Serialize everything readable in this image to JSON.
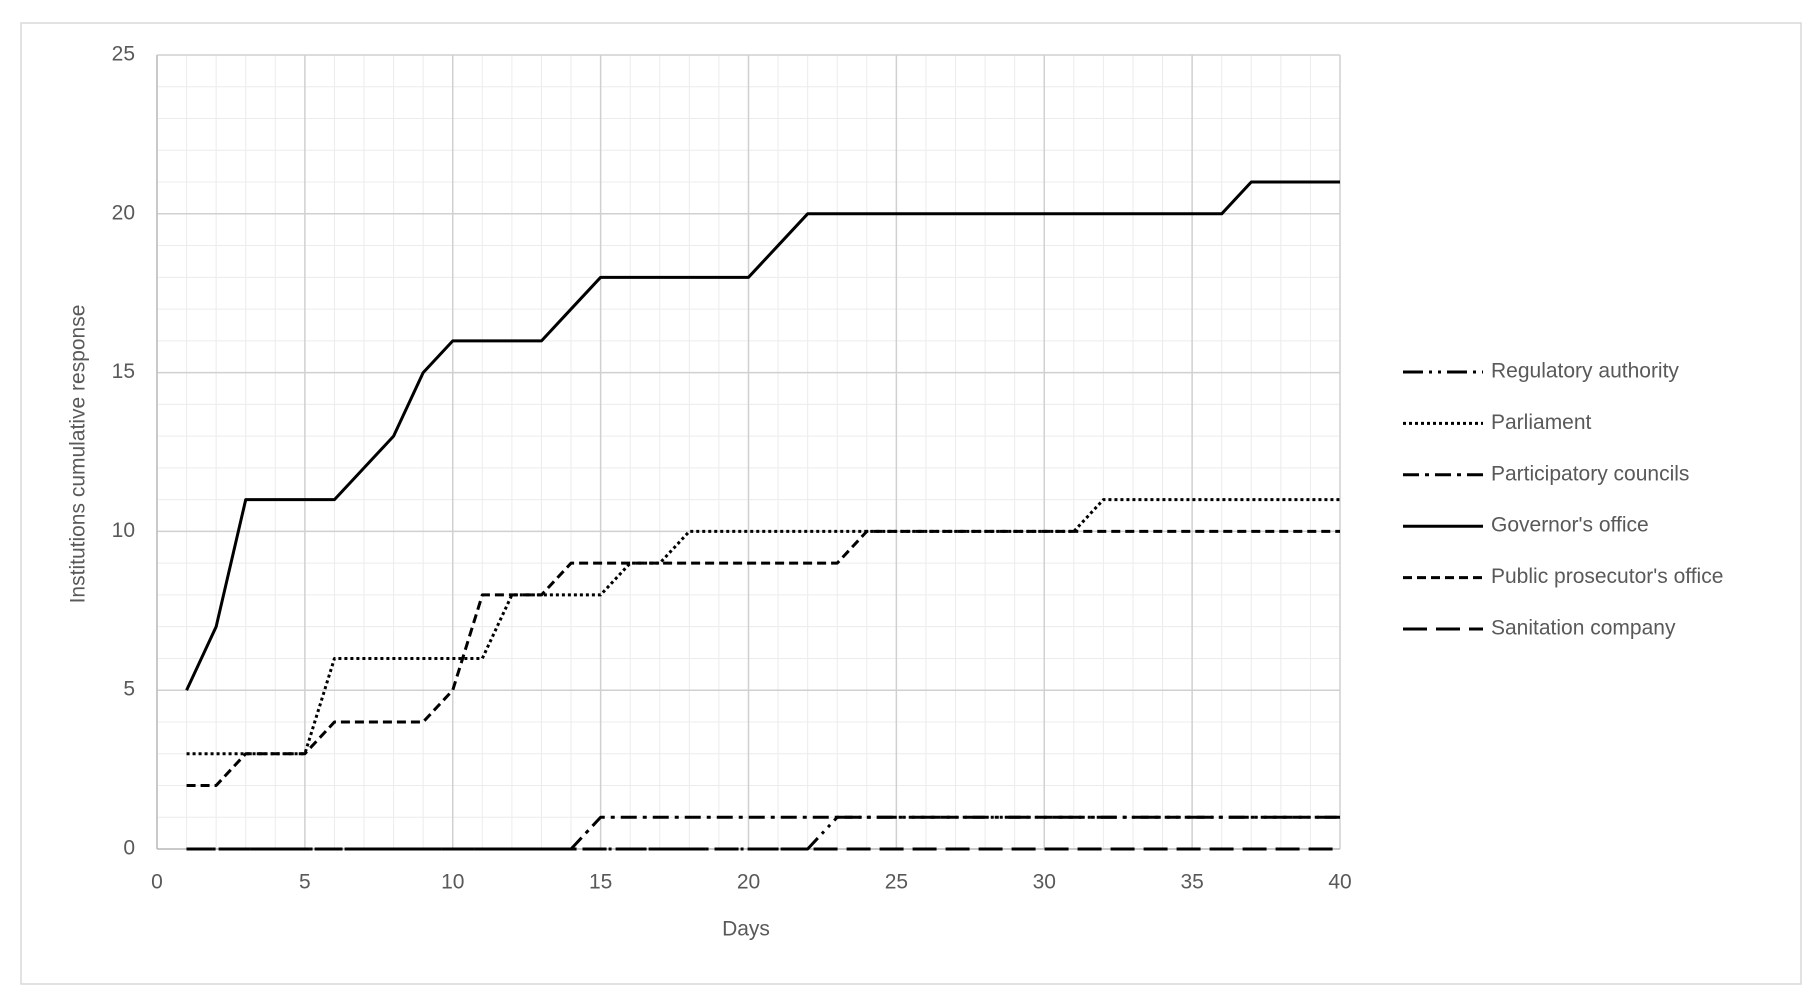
{
  "chart_data": {
    "type": "line",
    "x_label": "Days",
    "y_label": "Institutions cumulative response",
    "xlim": [
      0,
      40
    ],
    "xticks": [
      0,
      5,
      10,
      15,
      20,
      25,
      30,
      35,
      40
    ],
    "ylim": [
      0,
      25
    ],
    "yticks": [
      0,
      5,
      10,
      15,
      20,
      25
    ],
    "grid": true,
    "minor_grid": true,
    "legend": "right",
    "x": [
      1,
      2,
      3,
      4,
      5,
      6,
      7,
      8,
      9,
      10,
      11,
      12,
      13,
      14,
      15,
      16,
      17,
      18,
      19,
      20,
      21,
      22,
      23,
      24,
      25,
      26,
      27,
      28,
      29,
      30,
      31,
      32,
      33,
      34,
      35,
      36,
      37,
      38,
      39,
      40
    ],
    "series": [
      {
        "name": "Regulatory authority",
        "color": "#000000",
        "style": "dash-dot-dot",
        "values": [
          0,
          0,
          0,
          0,
          0,
          0,
          0,
          0,
          0,
          0,
          0,
          0,
          0,
          0,
          0,
          0,
          0,
          0,
          0,
          0,
          0,
          0,
          1,
          1,
          1,
          1,
          1,
          1,
          1,
          1,
          1,
          1,
          1,
          1,
          1,
          1,
          1,
          1,
          1,
          1
        ]
      },
      {
        "name": "Parliament",
        "color": "#000000",
        "style": "dotted",
        "values": [
          3,
          3,
          3,
          3,
          3,
          6,
          6,
          6,
          6,
          6,
          6,
          8,
          8,
          8,
          8,
          9,
          9,
          10,
          10,
          10,
          10,
          10,
          10,
          10,
          10,
          10,
          10,
          10,
          10,
          10,
          10,
          11,
          11,
          11,
          11,
          11,
          11,
          11,
          11,
          11
        ]
      },
      {
        "name": "Participatory councils",
        "color": "#000000",
        "style": "dash-dot",
        "values": [
          0,
          0,
          0,
          0,
          0,
          0,
          0,
          0,
          0,
          0,
          0,
          0,
          0,
          0,
          1,
          1,
          1,
          1,
          1,
          1,
          1,
          1,
          1,
          1,
          1,
          1,
          1,
          1,
          1,
          1,
          1,
          1,
          1,
          1,
          1,
          1,
          1,
          1,
          1,
          1
        ]
      },
      {
        "name": "Governor's office",
        "color": "#000000",
        "style": "solid",
        "values": [
          5,
          7,
          11,
          11,
          11,
          11,
          12,
          13,
          15,
          16,
          16,
          16,
          16,
          17,
          18,
          18,
          18,
          18,
          18,
          18,
          19,
          20,
          20,
          20,
          20,
          20,
          20,
          20,
          20,
          20,
          20,
          20,
          20,
          20,
          20,
          20,
          21,
          21,
          21,
          21
        ]
      },
      {
        "name": "Public prosecutor's office",
        "color": "#000000",
        "style": "dashed",
        "values": [
          2,
          2,
          3,
          3,
          3,
          4,
          4,
          4,
          4,
          5,
          8,
          8,
          8,
          9,
          9,
          9,
          9,
          9,
          9,
          9,
          9,
          9,
          9,
          10,
          10,
          10,
          10,
          10,
          10,
          10,
          10,
          10,
          10,
          10,
          10,
          10,
          10,
          10,
          10,
          10
        ]
      },
      {
        "name": "Sanitation company",
        "color": "#000000",
        "style": "long-dash",
        "values": [
          0,
          0,
          0,
          0,
          0,
          0,
          0,
          0,
          0,
          0,
          0,
          0,
          0,
          0,
          0,
          0,
          0,
          0,
          0,
          0,
          0,
          0,
          0,
          0,
          0,
          0,
          0,
          0,
          0,
          0,
          0,
          0,
          0,
          0,
          0,
          0,
          0,
          0,
          0,
          0
        ]
      }
    ]
  }
}
